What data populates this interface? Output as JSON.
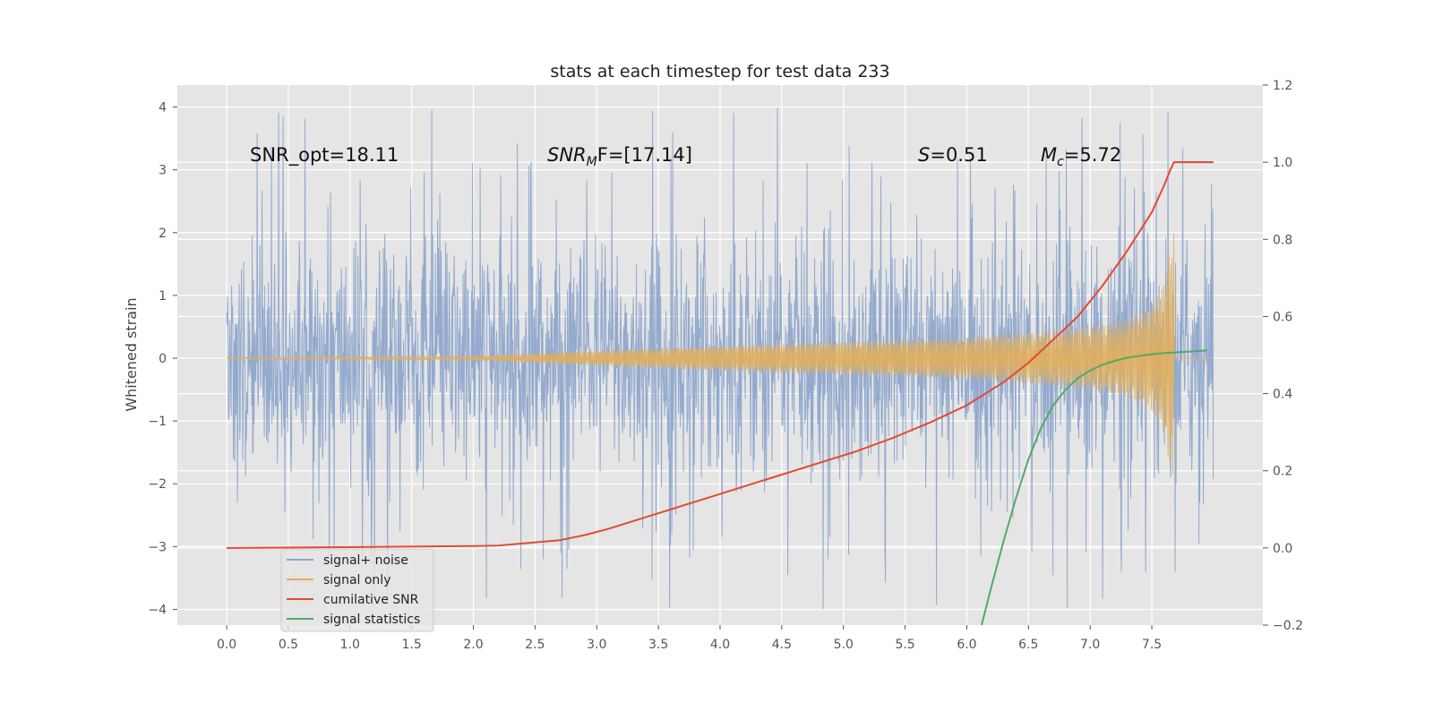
{
  "chart_data": {
    "type": "line",
    "title": "stats at each timestep for test data 233",
    "xlabel": "",
    "ylabel": "Whitened strain",
    "xlim": [
      -0.4,
      8.4
    ],
    "ylim_left": [
      -4.25,
      4.35
    ],
    "ylim_right": [
      -0.2,
      1.2
    ],
    "xticks": [
      "0.0",
      "0.5",
      "1.0",
      "1.5",
      "2.0",
      "2.5",
      "3.0",
      "3.5",
      "4.0",
      "4.5",
      "5.0",
      "5.5",
      "6.0",
      "6.5",
      "7.0",
      "7.5"
    ],
    "xtick_values": [
      0,
      0.5,
      1,
      1.5,
      2,
      2.5,
      3,
      3.5,
      4,
      4.5,
      5,
      5.5,
      6,
      6.5,
      7,
      7.5
    ],
    "yticks_left": [
      "4",
      "3",
      "2",
      "1",
      "0",
      "−1",
      "−2",
      "−3",
      "−4"
    ],
    "ytick_left_values": [
      4,
      3,
      2,
      1,
      0,
      -1,
      -2,
      -3,
      -4
    ],
    "yticks_right": [
      "1.2",
      "1.0",
      "0.8",
      "0.6",
      "0.4",
      "0.2",
      "0.0",
      "−0.2"
    ],
    "ytick_right_values": [
      1.2,
      1.0,
      0.8,
      0.6,
      0.4,
      0.2,
      0.0,
      -0.2
    ],
    "annotations": [
      {
        "id": "snr-opt",
        "text": "SNR_opt=18.11"
      },
      {
        "id": "snr-mf",
        "base": "SNR",
        "sub": "M",
        "after": "F=[17.14]"
      },
      {
        "id": "s-stat",
        "base": "S",
        "sub": "",
        "after": "=0.51"
      },
      {
        "id": "mc",
        "base": "M",
        "sub": "c",
        "after": "=5.72"
      }
    ],
    "series": [
      {
        "name": "signal+ noise",
        "axis": "left",
        "color": "#8EA6CC",
        "description": "noise-dominated strain, ~±2 envelope, spikes to ±4",
        "t_range": [
          0,
          8.0
        ]
      },
      {
        "name": "signal only",
        "axis": "left",
        "color": "#E2AE5A",
        "envelope": {
          "t": [
            0,
            2.0,
            3.0,
            4.0,
            5.0,
            6.0,
            6.5,
            7.0,
            7.3,
            7.5,
            7.6,
            7.65,
            7.68
          ],
          "amp": [
            0.01,
            0.03,
            0.12,
            0.2,
            0.26,
            0.33,
            0.4,
            0.5,
            0.62,
            0.85,
            1.2,
            1.8,
            2.0
          ]
        }
      },
      {
        "name": "cumilative SNR",
        "axis": "right",
        "color": "#E24A33",
        "x": [
          0,
          1.0,
          2.0,
          2.2,
          2.7,
          2.9,
          3.1,
          3.3,
          3.6,
          3.9,
          4.2,
          4.5,
          4.8,
          5.1,
          5.4,
          5.7,
          6.0,
          6.3,
          6.5,
          6.7,
          6.9,
          7.1,
          7.3,
          7.5,
          7.6,
          7.65,
          7.68,
          7.7,
          8.0
        ],
        "values": [
          0,
          0.002,
          0.005,
          0.006,
          0.02,
          0.033,
          0.05,
          0.07,
          0.1,
          0.13,
          0.16,
          0.19,
          0.22,
          0.25,
          0.285,
          0.325,
          0.37,
          0.43,
          0.48,
          0.54,
          0.6,
          0.68,
          0.77,
          0.87,
          0.94,
          0.98,
          1.0,
          1.0,
          1.0
        ]
      },
      {
        "name": "signal statistics",
        "axis": "right",
        "color": "#55A868",
        "x": [
          6.12,
          6.2,
          6.3,
          6.4,
          6.5,
          6.6,
          6.7,
          6.8,
          6.9,
          7.0,
          7.1,
          7.2,
          7.3,
          7.4,
          7.5,
          7.6,
          7.7,
          7.8,
          7.9,
          7.95
        ],
        "values": [
          -0.2,
          -0.1,
          0.02,
          0.13,
          0.23,
          0.31,
          0.37,
          0.41,
          0.44,
          0.46,
          0.475,
          0.485,
          0.493,
          0.498,
          0.502,
          0.505,
          0.507,
          0.509,
          0.511,
          0.512
        ]
      }
    ],
    "legend": {
      "position": "lower-left",
      "entries": [
        "signal+ noise",
        "signal only",
        "cumilative SNR",
        "signal statistics"
      ]
    },
    "grid": true
  }
}
